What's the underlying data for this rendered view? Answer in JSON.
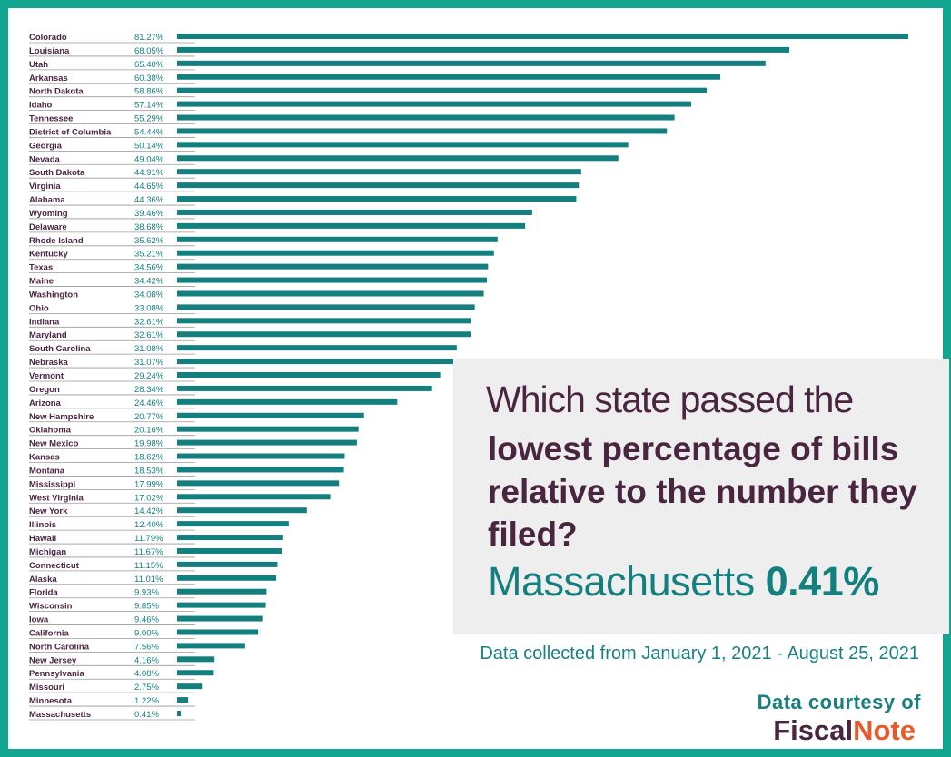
{
  "chart_data": {
    "type": "bar",
    "orientation": "horizontal",
    "categories": [
      "Colorado",
      "Louisiana",
      "Utah",
      "Arkansas",
      "North Dakota",
      "Idaho",
      "Tennessee",
      "District of Columbia",
      "Georgia",
      "Nevada",
      "South Dakota",
      "Virginia",
      "Alabama",
      "Wyoming",
      "Delaware",
      "Rhode Island",
      "Kentucky",
      "Texas",
      "Maine",
      "Washington",
      "Ohio",
      "Indiana",
      "Maryland",
      "South Carolina",
      "Nebraska",
      "Vermont",
      "Oregon",
      "Arizona",
      "New Hampshire",
      "Oklahoma",
      "New Mexico",
      "Kansas",
      "Montana",
      "Mississippi",
      "West Virginia",
      "New York",
      "Illinois",
      "Hawaii",
      "Michigan",
      "Connecticut",
      "Alaska",
      "Florida",
      "Wisconsin",
      "Iowa",
      "California",
      "North Carolina",
      "New Jersey",
      "Pennsylvania",
      "Missouri",
      "Minnesota",
      "Massachusetts"
    ],
    "values": [
      81.27,
      68.05,
      65.4,
      60.38,
      58.86,
      57.14,
      55.29,
      54.44,
      50.14,
      49.04,
      44.91,
      44.65,
      44.36,
      39.46,
      38.68,
      35.62,
      35.21,
      34.56,
      34.42,
      34.08,
      33.08,
      32.61,
      32.61,
      31.08,
      31.07,
      29.24,
      28.34,
      24.46,
      20.77,
      20.16,
      19.98,
      18.62,
      18.53,
      17.99,
      17.02,
      14.42,
      12.4,
      11.79,
      11.67,
      11.15,
      11.01,
      9.93,
      9.85,
      9.46,
      9.0,
      7.56,
      4.16,
      4.08,
      2.75,
      1.22,
      0.41
    ],
    "value_labels": [
      "81.27%",
      "68.05%",
      "65.40%",
      "60.38%",
      "58.86%",
      "57.14%",
      "55.29%",
      "54.44%",
      "50.14%",
      "49.04%",
      "44.91%",
      "44.65%",
      "44.36%",
      "39.46%",
      "38.68%",
      "35.62%",
      "35.21%",
      "34.56%",
      "34.42%",
      "34.08%",
      "33.08%",
      "32.61%",
      "32.61%",
      "31.08%",
      "31.07%",
      "29.24%",
      "28.34%",
      "24.46%",
      "20.77%",
      "20.16%",
      "19.98%",
      "18.62%",
      "18.53%",
      "17.99%",
      "17.02%",
      "14.42%",
      "12.40%",
      "11.79%",
      "11.67%",
      "11.15%",
      "11.01%",
      "9.93%",
      "9.85%",
      "9.46%",
      "9.00%",
      "7.56%",
      "4.16%",
      "4.08%",
      "2.75%",
      "1.22%",
      "0.41%"
    ],
    "title": "Which state passed the lowest percentage of bills relative to the number they filed?",
    "xlabel": "",
    "ylabel": "",
    "xlim": [
      0,
      82
    ],
    "bar_color": "#137f7f"
  },
  "callout": {
    "question_line1": "Which state passed the",
    "question_bold": "lowest percentage of bills relative to the number they filed?",
    "answer_state": "Massachusetts",
    "answer_value": "0.41%"
  },
  "footer": {
    "collected": "Data collected from January 1, 2021 - August 25, 2021",
    "courtesy": "Data courtesy of",
    "logo_part1": "Fiscal",
    "logo_part2": "Note"
  },
  "colors": {
    "border": "#12a58f",
    "teal": "#137f7f",
    "purple": "#4a2540",
    "orange": "#e85a28"
  }
}
